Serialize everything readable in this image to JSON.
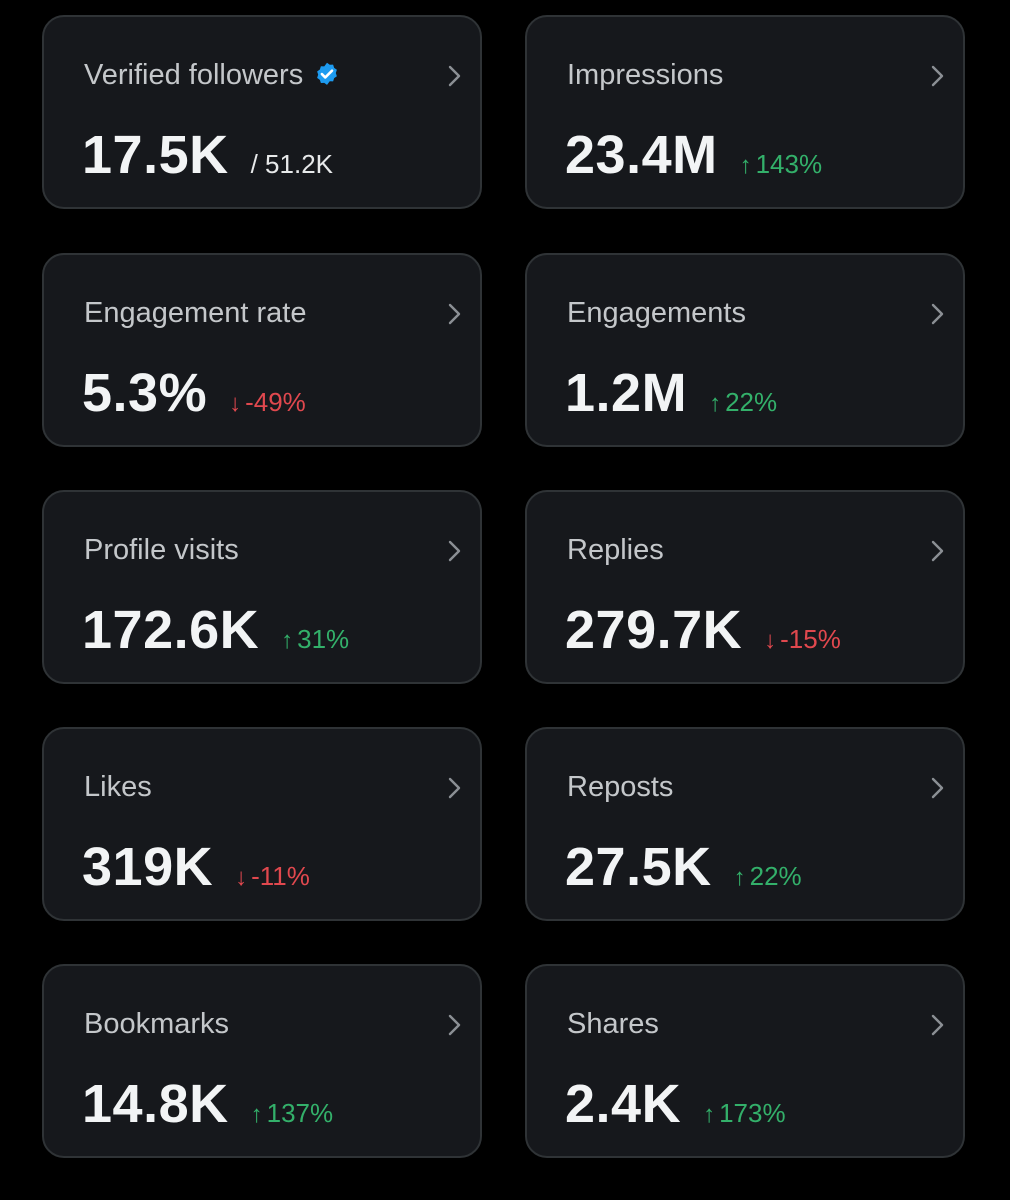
{
  "colors": {
    "background": "#000000",
    "card": "#16181c",
    "card_border": "#2f3336",
    "up": "#33b06a",
    "down": "#e0484e",
    "verified": "#1d9bf0"
  },
  "cards": [
    {
      "title": "Verified followers",
      "value": "17.5K",
      "sub_value": "/ 51.2K",
      "verified_icon": "verified-badge-icon"
    },
    {
      "title": "Impressions",
      "value": "23.4M",
      "change": "143%",
      "direction": "up",
      "arrow": "↑"
    },
    {
      "title": "Engagement rate",
      "value": "5.3%",
      "change": "-49%",
      "direction": "down",
      "arrow": "↓"
    },
    {
      "title": "Engagements",
      "value": "1.2M",
      "change": "22%",
      "direction": "up",
      "arrow": "↑"
    },
    {
      "title": "Profile visits",
      "value": "172.6K",
      "change": "31%",
      "direction": "up",
      "arrow": "↑"
    },
    {
      "title": "Replies",
      "value": "279.7K",
      "change": "-15%",
      "direction": "down",
      "arrow": "↓"
    },
    {
      "title": "Likes",
      "value": "319K",
      "change": "-11%",
      "direction": "down",
      "arrow": "↓"
    },
    {
      "title": "Reposts",
      "value": "27.5K",
      "change": "22%",
      "direction": "up",
      "arrow": "↑"
    },
    {
      "title": "Bookmarks",
      "value": "14.8K",
      "change": "137%",
      "direction": "up",
      "arrow": "↑"
    },
    {
      "title": "Shares",
      "value": "2.4K",
      "change": "173%",
      "direction": "up",
      "arrow": "↑"
    }
  ]
}
